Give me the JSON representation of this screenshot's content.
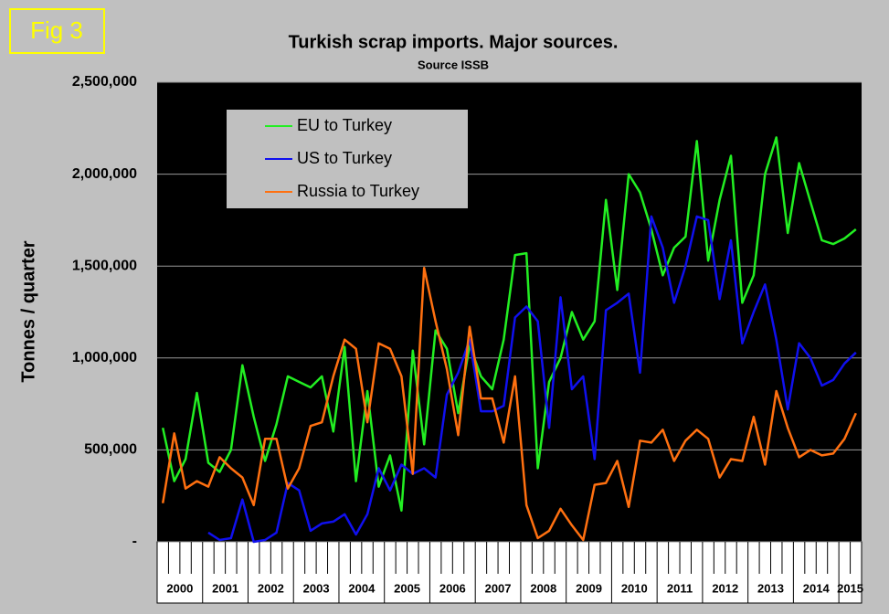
{
  "figure_label": "Fig 3",
  "chart_data": {
    "type": "line",
    "title": "Turkish scrap imports. Major sources.",
    "subtitle": "Source ISSB",
    "y_label": "Tonnes / quarter",
    "categories": [
      "2000",
      null,
      null,
      null,
      "2001",
      null,
      null,
      null,
      "2002",
      null,
      null,
      null,
      "2003",
      null,
      null,
      null,
      "2004",
      null,
      null,
      null,
      "2005",
      null,
      null,
      null,
      "2006",
      null,
      null,
      null,
      "2007",
      null,
      null,
      null,
      "2008",
      null,
      null,
      null,
      "2009",
      null,
      null,
      null,
      "2010",
      null,
      null,
      null,
      "2011",
      null,
      null,
      null,
      "2012",
      null,
      null,
      null,
      "2013",
      null,
      null,
      null,
      "2014",
      null,
      null,
      null,
      "2015",
      null
    ],
    "series": [
      {
        "name": "EU to Turkey",
        "color": "#22ee22",
        "values": [
          620000,
          330000,
          450000,
          810000,
          430000,
          380000,
          500000,
          960000,
          680000,
          440000,
          640000,
          900000,
          870000,
          840000,
          900000,
          600000,
          1060000,
          330000,
          820000,
          300000,
          470000,
          170000,
          1040000,
          530000,
          1150000,
          1050000,
          700000,
          1070000,
          900000,
          830000,
          1100000,
          1560000,
          1570000,
          400000,
          870000,
          1000000,
          1250000,
          1100000,
          1200000,
          1860000,
          1370000,
          2000000,
          1900000,
          1700000,
          1450000,
          1600000,
          1660000,
          2180000,
          1530000,
          1860000,
          2100000,
          1300000,
          1450000,
          2000000,
          2200000,
          1680000,
          2060000,
          1850000,
          1640000,
          1620000,
          1650000,
          1700000
        ]
      },
      {
        "name": "US to Turkey",
        "color": "#1010ee",
        "values": [
          null,
          null,
          null,
          null,
          50000,
          10000,
          20000,
          230000,
          0,
          10000,
          50000,
          320000,
          280000,
          60000,
          100000,
          110000,
          150000,
          40000,
          150000,
          400000,
          280000,
          420000,
          370000,
          400000,
          350000,
          800000,
          920000,
          1100000,
          710000,
          710000,
          740000,
          1220000,
          1280000,
          1200000,
          620000,
          1330000,
          830000,
          900000,
          450000,
          1260000,
          1300000,
          1350000,
          920000,
          1770000,
          1600000,
          1300000,
          1500000,
          1770000,
          1750000,
          1320000,
          1640000,
          1080000,
          1250000,
          1400000,
          1100000,
          720000,
          1080000,
          1000000,
          850000,
          880000,
          970000,
          1030000
        ]
      },
      {
        "name": "Russia to Turkey",
        "color": "#ff7010",
        "values": [
          210000,
          590000,
          290000,
          330000,
          300000,
          460000,
          400000,
          350000,
          200000,
          560000,
          560000,
          290000,
          400000,
          630000,
          650000,
          900000,
          1100000,
          1050000,
          650000,
          1080000,
          1050000,
          900000,
          370000,
          1490000,
          1200000,
          940000,
          580000,
          1170000,
          780000,
          780000,
          540000,
          900000,
          200000,
          20000,
          60000,
          180000,
          90000,
          10000,
          310000,
          320000,
          440000,
          190000,
          550000,
          540000,
          610000,
          440000,
          550000,
          610000,
          560000,
          350000,
          450000,
          440000,
          680000,
          420000,
          820000,
          620000,
          460000,
          500000,
          470000,
          480000,
          560000,
          700000
        ]
      }
    ],
    "ylim": [
      0,
      2500000
    ],
    "yticks": [
      {
        "value": 0,
        "label": "-"
      },
      {
        "value": 500000,
        "label": "500,000"
      },
      {
        "value": 1000000,
        "label": "1,000,000"
      },
      {
        "value": 1500000,
        "label": "1,500,000"
      },
      {
        "value": 2000000,
        "label": "2,000,000"
      },
      {
        "value": 2500000,
        "label": "2,500,000"
      }
    ],
    "grid": true
  }
}
